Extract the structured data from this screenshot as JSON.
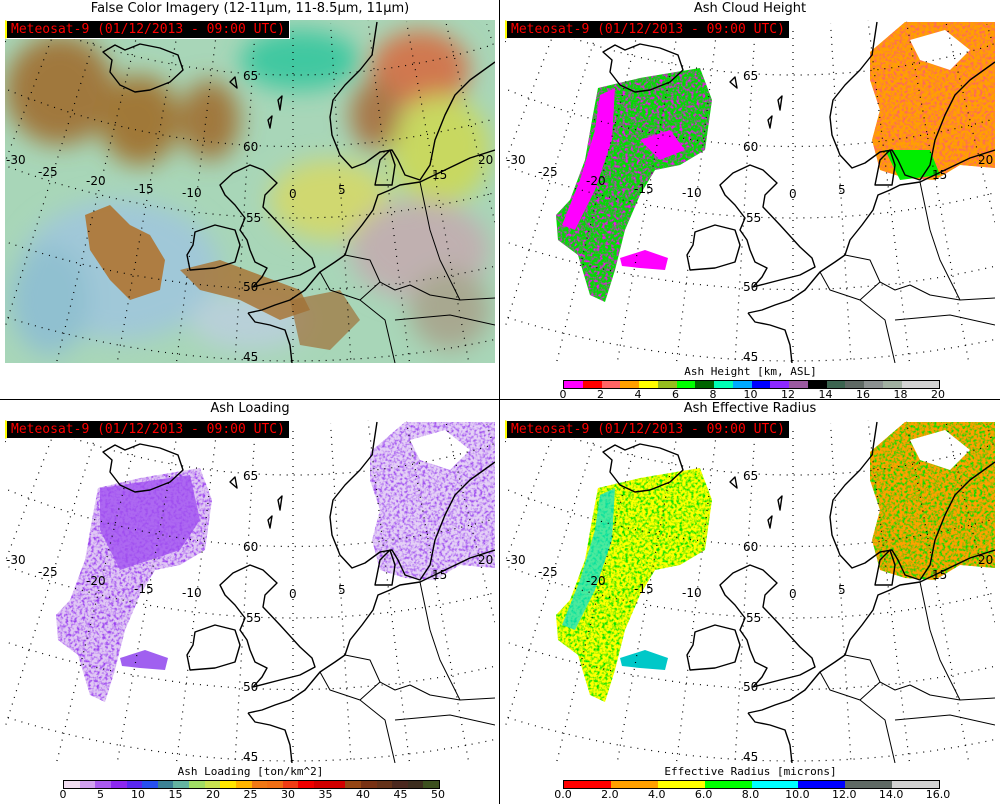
{
  "satellite_label": "Meteosat-9  (01/12/2013 - 09:00 UTC)",
  "lat_labels": [
    "65",
    "60",
    "55",
    "50",
    "45"
  ],
  "lon_labels": [
    "-30",
    "-25",
    "-20",
    "-15",
    "-10",
    "0",
    "5",
    "15",
    "20"
  ],
  "panels": [
    {
      "title": "False Color Imagery (12-11µm, 11-8.5µm, 11µm)"
    },
    {
      "title": "Ash Cloud Height"
    },
    {
      "title": "Ash Loading"
    },
    {
      "title": "Ash Effective Radius"
    }
  ],
  "colorbars": {
    "height": {
      "title": "Ash Height [km, ASL]",
      "range": [
        0,
        20
      ],
      "ticks": [
        "0",
        "2",
        "4",
        "6",
        "8",
        "10",
        "12",
        "14",
        "16",
        "18",
        "20"
      ],
      "colors": [
        "#ff00ff",
        "#ff0000",
        "#ff6464",
        "#ffa000",
        "#ffff00",
        "#96be1e",
        "#00ff00",
        "#006400",
        "#00ffb4",
        "#00aaff",
        "#0000ff",
        "#8c28ff",
        "#9b5aa0",
        "#000000",
        "#3c6450",
        "#5f6964",
        "#8c9191",
        "#a0afa0",
        "#d2d2d2",
        "#d2d2d2"
      ]
    },
    "loading": {
      "title": "Ash Loading [ton/km^2]",
      "range": [
        0,
        50
      ],
      "ticks": [
        "0",
        "5",
        "10",
        "15",
        "20",
        "25",
        "30",
        "35",
        "40",
        "45",
        "50"
      ],
      "colors": [
        "#f0dcf0",
        "#d2a0f0",
        "#aa5af0",
        "#8c28f0",
        "#5a28f0",
        "#2850f0",
        "#3c8296",
        "#64b4a0",
        "#a0dc64",
        "#c8e150",
        "#ffe600",
        "#ffb400",
        "#f07814",
        "#f06e14",
        "#f03c14",
        "#f00000",
        "#d20000",
        "#d20000",
        "#964614",
        "#783214",
        "#643219",
        "#4b281e",
        "#3c2d1e",
        "#3c501e"
      ]
    },
    "radius": {
      "title": "Effective Radius [microns]",
      "range": [
        0,
        16
      ],
      "ticks": [
        "0.0",
        "2.0",
        "4.0",
        "6.0",
        "8.0",
        "10.0",
        "12.0",
        "14.0",
        "16.0"
      ],
      "colors": [
        "#ff0000",
        "#ffa000",
        "#ffff00",
        "#00ff00",
        "#00ffff",
        "#0000ff",
        "#5f6964",
        "#d2d2d2"
      ]
    }
  }
}
